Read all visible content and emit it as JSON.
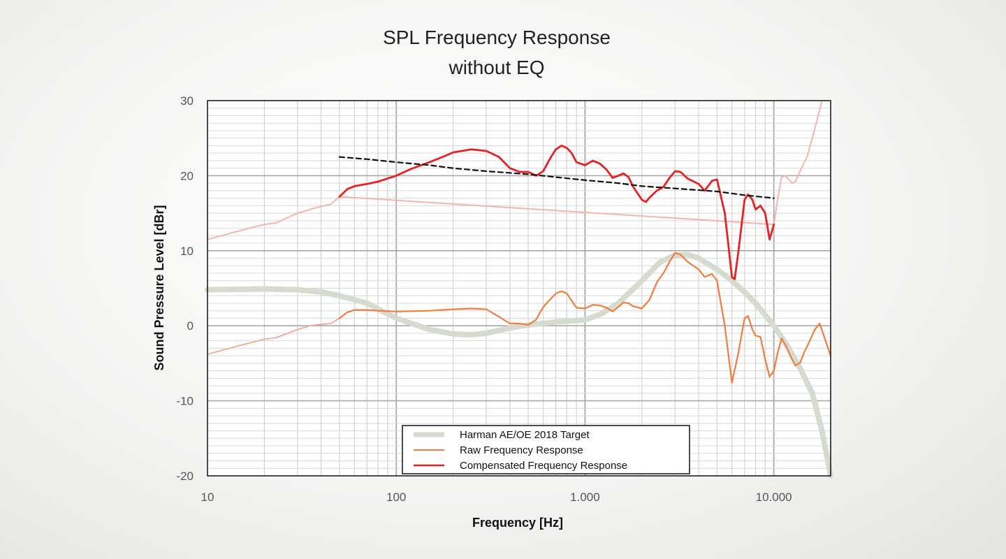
{
  "chart_data": {
    "type": "line",
    "title": [
      "SPL Frequency Response",
      "without EQ"
    ],
    "xlabel": "Frequency [Hz]",
    "ylabel": "Sound Pressure Level [dBr]",
    "xscale": "log",
    "xlim": [
      10,
      20000
    ],
    "ylim": [
      -20,
      30
    ],
    "xticks": [
      {
        "value": 10,
        "label": "10"
      },
      {
        "value": 100,
        "label": "100"
      },
      {
        "value": 1000,
        "label": "1.000"
      },
      {
        "value": 10000,
        "label": "10.000"
      }
    ],
    "yticks": [
      {
        "value": -20,
        "label": "-20"
      },
      {
        "value": -10,
        "label": "-10"
      },
      {
        "value": 0,
        "label": "0"
      },
      {
        "value": 10,
        "label": "10"
      },
      {
        "value": 20,
        "label": "20"
      },
      {
        "value": 30,
        "label": "30"
      }
    ],
    "grid": true,
    "legend_position": "bottom-center",
    "series": [
      {
        "name": "Harman AE/OE 2018 Target",
        "color": "#d5dccf",
        "in_legend": true,
        "points": [
          [
            10,
            4.8
          ],
          [
            20,
            4.9
          ],
          [
            30,
            4.8
          ],
          [
            40,
            4.5
          ],
          [
            50,
            4.0
          ],
          [
            70,
            3.0
          ],
          [
            100,
            1.0
          ],
          [
            150,
            -0.5
          ],
          [
            200,
            -1.1
          ],
          [
            250,
            -1.2
          ],
          [
            300,
            -1.0
          ],
          [
            400,
            -0.3
          ],
          [
            500,
            0.1
          ],
          [
            700,
            0.5
          ],
          [
            1000,
            0.8
          ],
          [
            1200,
            1.5
          ],
          [
            1500,
            3.0
          ],
          [
            2000,
            6.0
          ],
          [
            2500,
            8.5
          ],
          [
            3000,
            9.4
          ],
          [
            3500,
            9.5
          ],
          [
            4000,
            9.0
          ],
          [
            5000,
            7.5
          ],
          [
            6000,
            6.0
          ],
          [
            7000,
            4.5
          ],
          [
            8000,
            3.0
          ],
          [
            10000,
            0.0
          ],
          [
            12000,
            -3.0
          ],
          [
            14000,
            -6.0
          ],
          [
            16000,
            -9.0
          ],
          [
            18000,
            -14.0
          ],
          [
            20000,
            -20.0
          ]
        ]
      },
      {
        "name": "Raw Frequency Response",
        "color": "#ef7d3f",
        "in_legend": true,
        "points": [
          [
            50,
            1.0
          ],
          [
            55,
            1.8
          ],
          [
            60,
            2.1
          ],
          [
            70,
            2.1
          ],
          [
            80,
            2.0
          ],
          [
            100,
            1.9
          ],
          [
            150,
            2.0
          ],
          [
            200,
            2.2
          ],
          [
            250,
            2.3
          ],
          [
            300,
            2.2
          ],
          [
            350,
            1.2
          ],
          [
            400,
            0.3
          ],
          [
            450,
            0.3
          ],
          [
            500,
            0.1
          ],
          [
            550,
            0.8
          ],
          [
            600,
            2.5
          ],
          [
            700,
            4.3
          ],
          [
            750,
            4.6
          ],
          [
            800,
            4.3
          ],
          [
            900,
            2.4
          ],
          [
            1000,
            2.3
          ],
          [
            1100,
            2.8
          ],
          [
            1200,
            2.7
          ],
          [
            1300,
            2.4
          ],
          [
            1400,
            1.9
          ],
          [
            1500,
            2.5
          ],
          [
            1600,
            3.1
          ],
          [
            1700,
            3.0
          ],
          [
            1800,
            2.6
          ],
          [
            2000,
            2.3
          ],
          [
            2200,
            3.5
          ],
          [
            2400,
            5.8
          ],
          [
            2600,
            7.0
          ],
          [
            2800,
            8.5
          ],
          [
            3000,
            9.7
          ],
          [
            3200,
            9.5
          ],
          [
            3500,
            8.5
          ],
          [
            4000,
            7.5
          ],
          [
            4300,
            6.5
          ],
          [
            4700,
            6.9
          ],
          [
            5000,
            6.0
          ],
          [
            5500,
            0.0
          ],
          [
            6000,
            -7.6
          ],
          [
            6500,
            -3.5
          ],
          [
            7000,
            1.0
          ],
          [
            7300,
            1.3
          ],
          [
            7700,
            -0.5
          ],
          [
            8000,
            -1.3
          ],
          [
            8500,
            -1.5
          ],
          [
            9000,
            -4.5
          ],
          [
            9500,
            -6.8
          ],
          [
            10000,
            -6.0
          ],
          [
            10500,
            -3.5
          ],
          [
            11000,
            -1.7
          ],
          [
            11500,
            -2.5
          ],
          [
            12500,
            -4.5
          ],
          [
            13000,
            -5.3
          ],
          [
            13800,
            -4.9
          ],
          [
            14500,
            -3.5
          ],
          [
            15500,
            -2.0
          ],
          [
            16500,
            -0.5
          ],
          [
            17500,
            0.3
          ],
          [
            18500,
            -1.5
          ],
          [
            20000,
            -4.0
          ]
        ]
      },
      {
        "name": "Raw Frequency Response (extended)",
        "color": "#f2a991",
        "in_legend": false,
        "points": [
          [
            10,
            -3.8
          ],
          [
            15,
            -2.6
          ],
          [
            20,
            -1.8
          ],
          [
            23,
            -1.6
          ],
          [
            26,
            -1.1
          ],
          [
            30,
            -0.5
          ],
          [
            35,
            0.0
          ],
          [
            40,
            0.2
          ],
          [
            45,
            0.3
          ],
          [
            50,
            1.0
          ]
        ]
      },
      {
        "name": "Compensated Frequency Response",
        "color": "#e52222",
        "in_legend": true,
        "points": [
          [
            50,
            17.2
          ],
          [
            55,
            18.2
          ],
          [
            60,
            18.6
          ],
          [
            70,
            18.9
          ],
          [
            80,
            19.2
          ],
          [
            100,
            20.0
          ],
          [
            120,
            20.9
          ],
          [
            150,
            21.8
          ],
          [
            180,
            22.6
          ],
          [
            200,
            23.1
          ],
          [
            250,
            23.5
          ],
          [
            300,
            23.3
          ],
          [
            350,
            22.5
          ],
          [
            400,
            21.0
          ],
          [
            450,
            20.5
          ],
          [
            500,
            20.5
          ],
          [
            550,
            20.0
          ],
          [
            600,
            20.6
          ],
          [
            650,
            22.2
          ],
          [
            700,
            23.5
          ],
          [
            750,
            24.0
          ],
          [
            800,
            23.7
          ],
          [
            850,
            23.0
          ],
          [
            900,
            21.8
          ],
          [
            1000,
            21.4
          ],
          [
            1100,
            22.0
          ],
          [
            1200,
            21.6
          ],
          [
            1300,
            20.8
          ],
          [
            1400,
            19.7
          ],
          [
            1500,
            20.0
          ],
          [
            1600,
            20.3
          ],
          [
            1700,
            19.8
          ],
          [
            1800,
            18.5
          ],
          [
            2000,
            16.8
          ],
          [
            2100,
            16.5
          ],
          [
            2200,
            17.1
          ],
          [
            2400,
            18.0
          ],
          [
            2600,
            18.5
          ],
          [
            2800,
            19.7
          ],
          [
            3000,
            20.6
          ],
          [
            3200,
            20.5
          ],
          [
            3500,
            19.6
          ],
          [
            4000,
            18.9
          ],
          [
            4300,
            18.0
          ],
          [
            4700,
            19.3
          ],
          [
            5000,
            19.5
          ],
          [
            5500,
            15.0
          ],
          [
            6000,
            6.5
          ],
          [
            6200,
            6.2
          ],
          [
            6500,
            10.0
          ],
          [
            7000,
            16.8
          ],
          [
            7300,
            17.5
          ],
          [
            7700,
            16.8
          ],
          [
            8000,
            15.5
          ],
          [
            8500,
            16.0
          ],
          [
            9000,
            15.0
          ],
          [
            9500,
            11.5
          ],
          [
            10000,
            13.5
          ]
        ]
      },
      {
        "name": "Compensated Frequency Response (extended)",
        "color": "#f7b3a8",
        "in_legend": false,
        "points": [
          [
            10,
            11.5
          ],
          [
            15,
            12.7
          ],
          [
            20,
            13.5
          ],
          [
            23,
            13.7
          ],
          [
            26,
            14.3
          ],
          [
            30,
            15.0
          ],
          [
            35,
            15.5
          ],
          [
            40,
            15.9
          ],
          [
            45,
            16.2
          ],
          [
            50,
            17.2
          ],
          [
            10000,
            13.5
          ],
          [
            10500,
            17.0
          ],
          [
            11000,
            19.8
          ],
          [
            11500,
            20.0
          ],
          [
            12500,
            19.0
          ],
          [
            13000,
            19.2
          ],
          [
            14000,
            21.0
          ],
          [
            15000,
            22.5
          ],
          [
            16000,
            25.0
          ],
          [
            17000,
            27.5
          ],
          [
            18000,
            30.0
          ]
        ]
      },
      {
        "name": "Trend",
        "color": "#111111",
        "in_legend": false,
        "dashed": true,
        "points": [
          [
            50,
            22.5
          ],
          [
            70,
            22.2
          ],
          [
            100,
            21.8
          ],
          [
            150,
            21.4
          ],
          [
            200,
            21.0
          ],
          [
            300,
            20.6
          ],
          [
            500,
            20.2
          ],
          [
            700,
            19.8
          ],
          [
            1000,
            19.4
          ],
          [
            1500,
            19.0
          ],
          [
            2000,
            18.6
          ],
          [
            3000,
            18.3
          ],
          [
            5000,
            17.9
          ],
          [
            7000,
            17.4
          ],
          [
            10000,
            17.0
          ]
        ]
      }
    ]
  }
}
